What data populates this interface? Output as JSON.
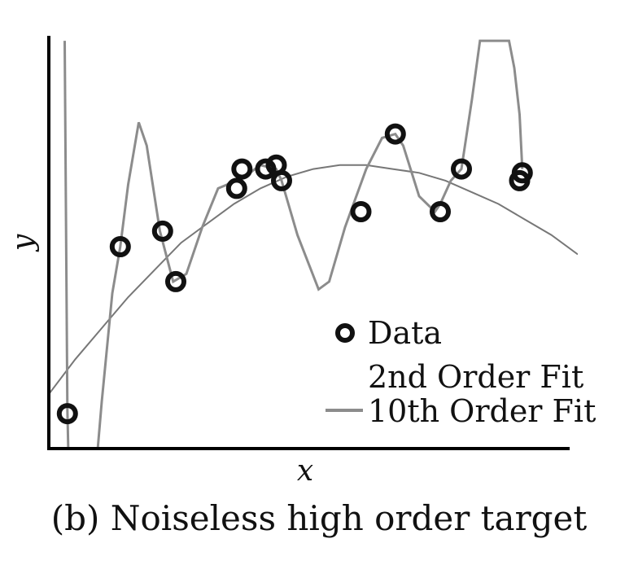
{
  "caption": "(b) Noiseless high order target",
  "chart_data": {
    "type": "scatter",
    "xlabel": "x",
    "ylabel": "y",
    "xlim": [
      0,
      1
    ],
    "ylim": [
      0,
      1
    ],
    "grid": false,
    "legend_position": "bottom-right",
    "legend": [
      "Data",
      "2nd Order Fit",
      "10th Order Fit"
    ],
    "colors": {
      "data": "#111111",
      "fit2": "#777777",
      "fit10": "#8c8c8c"
    },
    "series": [
      {
        "name": "Data",
        "kind": "points",
        "x": [
          0.035,
          0.135,
          0.215,
          0.24,
          0.355,
          0.365,
          0.41,
          0.43,
          0.44,
          0.59,
          0.655,
          0.74,
          0.78,
          0.89,
          0.895
        ],
        "y": [
          0.09,
          0.52,
          0.56,
          0.43,
          0.67,
          0.72,
          0.72,
          0.73,
          0.69,
          0.61,
          0.81,
          0.61,
          0.72,
          0.69,
          0.71
        ]
      },
      {
        "name": "2nd Order Fit",
        "kind": "curve",
        "x": [
          0.0,
          0.05,
          0.1,
          0.15,
          0.2,
          0.25,
          0.3,
          0.35,
          0.4,
          0.45,
          0.5,
          0.55,
          0.6,
          0.65,
          0.7,
          0.75,
          0.8,
          0.85,
          0.9,
          0.95,
          1.0
        ],
        "y": [
          0.14,
          0.23,
          0.31,
          0.39,
          0.46,
          0.53,
          0.58,
          0.63,
          0.67,
          0.7,
          0.72,
          0.73,
          0.73,
          0.72,
          0.71,
          0.69,
          0.66,
          0.63,
          0.59,
          0.55,
          0.5
        ]
      },
      {
        "name": "10th Order Fit",
        "kind": "curve",
        "x": [
          0.03,
          0.035,
          0.04,
          0.08,
          0.1,
          0.12,
          0.135,
          0.15,
          0.17,
          0.185,
          0.21,
          0.235,
          0.26,
          0.29,
          0.32,
          0.355,
          0.37,
          0.4,
          0.43,
          0.44,
          0.47,
          0.51,
          0.53,
          0.56,
          0.6,
          0.63,
          0.655,
          0.67,
          0.7,
          0.73,
          0.74,
          0.76,
          0.78,
          0.8,
          0.815,
          0.87,
          0.88,
          0.89,
          0.895
        ],
        "y": [
          1.05,
          0.1,
          -0.2,
          -0.2,
          0.12,
          0.4,
          0.52,
          0.68,
          0.84,
          0.78,
          0.56,
          0.43,
          0.45,
          0.57,
          0.67,
          0.69,
          0.7,
          0.73,
          0.72,
          0.69,
          0.55,
          0.41,
          0.43,
          0.57,
          0.72,
          0.8,
          0.81,
          0.78,
          0.65,
          0.61,
          0.63,
          0.69,
          0.72,
          0.9,
          1.05,
          1.05,
          0.98,
          0.86,
          0.72
        ]
      }
    ]
  }
}
